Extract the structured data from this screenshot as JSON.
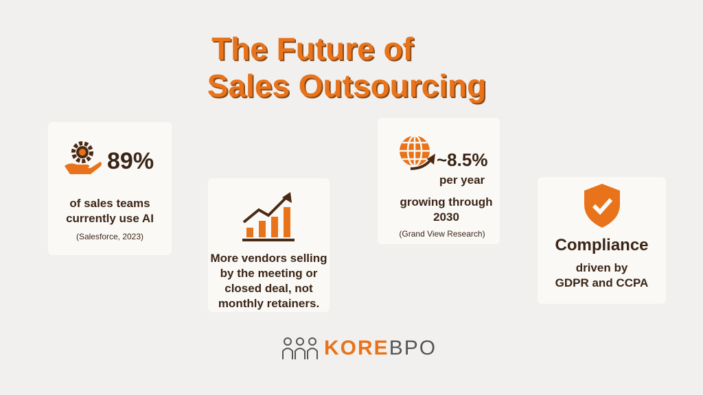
{
  "header": {
    "title": [
      "The Future of",
      "Sales Outsourcing"
    ]
  },
  "cards": [
    {
      "stat": "89%",
      "text": [
        "of sales teams",
        "currently use AI"
      ],
      "source": "(Salesforce, 2023)"
    },
    {
      "text": [
        "More vendors selling",
        "by the meeting or",
        "closed deal, not",
        "monthly retainers."
      ]
    },
    {
      "stat": "~8.5%",
      "stat_sub": "per year",
      "text": [
        "growing through",
        "2030"
      ],
      "source": "(Grand View Research)"
    },
    {
      "heading": "Compliance",
      "text": [
        "driven by",
        "GDPR and CCPA"
      ]
    }
  ],
  "logo": {
    "brand": "KORE",
    "suffix": "BPO"
  }
}
